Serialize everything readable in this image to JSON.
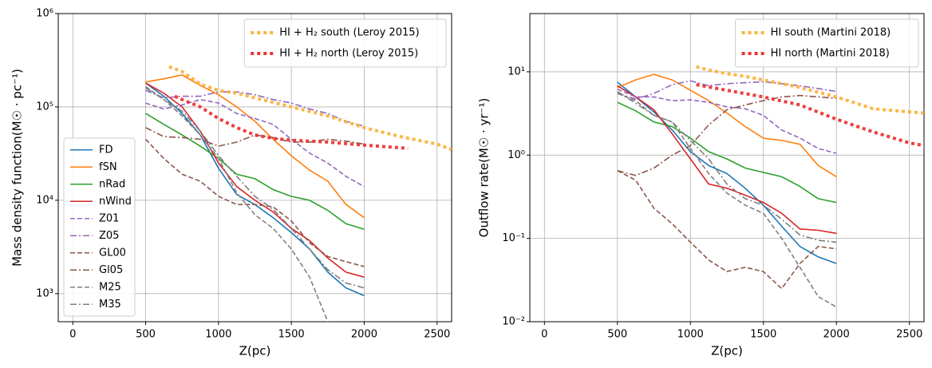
{
  "chart_data": [
    {
      "type": "line",
      "xlabel": "Z(pc)",
      "ylabel": "Mass density function(M☉ · pc⁻¹)",
      "xlim": [
        -100,
        2600
      ],
      "ylim": [
        500,
        1000000
      ],
      "log_y": true,
      "grid": true,
      "legend": "lower left",
      "xticks": [
        0,
        500,
        1000,
        1500,
        2000,
        2500
      ],
      "yticks": [
        {
          "value": 1000,
          "label": "10³"
        },
        {
          "value": 10000,
          "label": "10⁴"
        },
        {
          "value": 100000,
          "label": "10⁵"
        },
        {
          "value": 1000000,
          "label": "10⁶"
        }
      ],
      "x": [
        500,
        625,
        750,
        875,
        1000,
        1125,
        1250,
        1375,
        1500,
        1625,
        1750,
        1875,
        2000
      ],
      "series": [
        {
          "name": "FD",
          "color": "#1f77b4",
          "style": "solid",
          "values": [
            180000,
            130000,
            85000,
            50000,
            22000,
            11500,
            9000,
            6500,
            4500,
            3000,
            1700,
            1150,
            950
          ]
        },
        {
          "name": "fSN",
          "color": "#ff7f0e",
          "style": "solid",
          "values": [
            185000,
            200000,
            220000,
            170000,
            135000,
            100000,
            70000,
            45000,
            30000,
            21000,
            16000,
            9000,
            6500
          ]
        },
        {
          "name": "nRad",
          "color": "#2ca02c",
          "style": "solid",
          "values": [
            85000,
            65000,
            50000,
            38000,
            28000,
            19000,
            17000,
            13000,
            11000,
            10000,
            7800,
            5600,
            4900
          ]
        },
        {
          "name": "nWind",
          "color": "#d62728",
          "style": "solid",
          "values": [
            180000,
            140000,
            100000,
            55000,
            25000,
            14000,
            10000,
            7500,
            5000,
            3700,
            2400,
            1700,
            1500
          ]
        },
        {
          "name": "Z01",
          "color": "#9467bd",
          "style": "dashed",
          "values": [
            110000,
            95000,
            105000,
            120000,
            110000,
            85000,
            75000,
            65000,
            45000,
            32000,
            25000,
            18000,
            14000
          ]
        },
        {
          "name": "Z05",
          "color": "#9467bd",
          "style": "dashdot",
          "values": [
            150000,
            125000,
            130000,
            130000,
            145000,
            145000,
            135000,
            120000,
            110000,
            95000,
            85000,
            70000,
            62000
          ]
        },
        {
          "name": "GL00",
          "color": "#8c564b",
          "style": "dashed",
          "values": [
            45000,
            28000,
            19000,
            16000,
            11000,
            9000,
            9000,
            8500,
            6000,
            3500,
            2500,
            2200,
            1950
          ]
        },
        {
          "name": "Gl05",
          "color": "#8c564b",
          "style": "dashdot",
          "values": [
            60000,
            48000,
            47000,
            45000,
            38000,
            42000,
            50000,
            47000,
            42000,
            42000,
            45000,
            43000,
            40000
          ]
        },
        {
          "name": "M25",
          "color": "#7f7f7f",
          "style": "dashed",
          "values": [
            165000,
            120000,
            80000,
            50000,
            28000,
            12000,
            7000,
            5000,
            3000,
            1500,
            500,
            null,
            null
          ]
        },
        {
          "name": "M35",
          "color": "#7f7f7f",
          "style": "dashdot",
          "values": [
            160000,
            120000,
            90000,
            55000,
            30000,
            18000,
            11000,
            8000,
            5000,
            3000,
            1800,
            1300,
            1150
          ]
        },
        {
          "name": "HI + H₂ south (Leroy 2015)",
          "color": "#fbb33a",
          "style": "dotted",
          "legend": "upper right",
          "x": [
            660,
            750,
            875,
            1000,
            1125,
            1250,
            1500,
            1750,
            2000,
            2250,
            2500,
            2600
          ],
          "values": [
            270000,
            240000,
            175000,
            150000,
            140000,
            125000,
            100000,
            80000,
            60000,
            48000,
            40000,
            35000
          ]
        },
        {
          "name": "HI + H₂ north (Leroy 2015)",
          "color": "#ee3333",
          "style": "dotted",
          "legend": "upper right",
          "x": [
            700,
            750,
            875,
            1000,
            1125,
            1250,
            1375,
            1500,
            1750,
            2000,
            2300
          ],
          "values": [
            130000,
            120000,
            100000,
            75000,
            60000,
            50000,
            46000,
            44000,
            42000,
            39000,
            36000
          ]
        }
      ]
    },
    {
      "type": "line",
      "xlabel": "Z(pc)",
      "ylabel": "Outflow rate(M☉ · yr⁻¹)",
      "xlim": [
        -100,
        2600
      ],
      "ylim": [
        0.01,
        50
      ],
      "log_y": true,
      "grid": true,
      "xticks": [
        0,
        500,
        1000,
        1500,
        2000,
        2500
      ],
      "yticks": [
        {
          "value": 0.01,
          "label": "10⁻²"
        },
        {
          "value": 0.1,
          "label": "10⁻¹"
        },
        {
          "value": 1,
          "label": "10⁰"
        },
        {
          "value": 10,
          "label": "10¹"
        }
      ],
      "x": [
        500,
        625,
        750,
        875,
        1000,
        1125,
        1250,
        1375,
        1500,
        1625,
        1750,
        1875,
        2000
      ],
      "series": [
        {
          "color": "#1f77b4",
          "style": "solid",
          "values": [
            7.5,
            5,
            3.3,
            2,
            1.1,
            0.75,
            0.6,
            0.4,
            0.25,
            0.14,
            0.08,
            0.06,
            0.05
          ]
        },
        {
          "color": "#ff7f0e",
          "style": "solid",
          "values": [
            6.5,
            8,
            9.3,
            8,
            6,
            4.5,
            3.2,
            2.2,
            1.6,
            1.5,
            1.35,
            0.75,
            0.55
          ]
        },
        {
          "color": "#2ca02c",
          "style": "solid",
          "values": [
            4.3,
            3.4,
            2.5,
            2.2,
            1.6,
            1.1,
            0.9,
            0.7,
            0.62,
            0.55,
            0.42,
            0.3,
            0.27
          ]
        },
        {
          "color": "#d62728",
          "style": "solid",
          "values": [
            6.8,
            5,
            3.5,
            1.8,
            0.9,
            0.45,
            0.4,
            0.33,
            0.27,
            0.2,
            0.13,
            0.125,
            0.115
          ]
        },
        {
          "color": "#9467bd",
          "style": "dashed",
          "values": [
            6.2,
            5,
            5,
            4.5,
            4.6,
            4.3,
            3.8,
            3.6,
            3,
            2,
            1.6,
            1.2,
            1.05
          ]
        },
        {
          "color": "#9467bd",
          "style": "dashdot",
          "values": [
            5.5,
            4.7,
            5.5,
            7,
            7.8,
            6.8,
            7.2,
            7.4,
            7.6,
            7.2,
            6.8,
            6.3,
            5.8
          ]
        },
        {
          "color": "#8c564b",
          "style": "dashed",
          "values": [
            0.65,
            0.5,
            0.23,
            0.15,
            0.09,
            0.055,
            0.04,
            0.045,
            0.04,
            0.025,
            0.05,
            0.08,
            0.075
          ]
        },
        {
          "color": "#8c564b",
          "style": "dashdot",
          "values": [
            0.65,
            0.57,
            0.7,
            1,
            1.3,
            2.3,
            3.5,
            4,
            4.5,
            5,
            5.2,
            5,
            4.8
          ]
        },
        {
          "color": "#7f7f7f",
          "style": "dashed",
          "values": [
            5.5,
            4.5,
            3,
            2.5,
            1.2,
            0.6,
            0.35,
            0.25,
            0.2,
            0.1,
            0.045,
            0.02,
            0.015
          ]
        },
        {
          "color": "#7f7f7f",
          "style": "dashdot",
          "values": [
            5.8,
            4.2,
            3,
            2.5,
            1.5,
            0.9,
            0.45,
            0.3,
            0.25,
            0.17,
            0.11,
            0.095,
            0.09
          ]
        },
        {
          "name": "HI south (Martini 2018)",
          "color": "#fbb33a",
          "style": "dotted",
          "legend": "upper right",
          "x": [
            1040,
            1125,
            1250,
            1375,
            1500,
            1750,
            2000,
            2250,
            2500,
            2600
          ],
          "values": [
            11.5,
            10.5,
            9.5,
            8.8,
            8,
            6.5,
            5,
            3.6,
            3.3,
            3.2
          ]
        },
        {
          "name": "HI north (Martini 2018)",
          "color": "#ee3333",
          "style": "dotted",
          "legend": "upper right",
          "x": [
            1040,
            1250,
            1500,
            1750,
            2000,
            2250,
            2500,
            2600
          ],
          "values": [
            7,
            6,
            5,
            4,
            2.7,
            1.9,
            1.4,
            1.3
          ]
        }
      ]
    }
  ]
}
